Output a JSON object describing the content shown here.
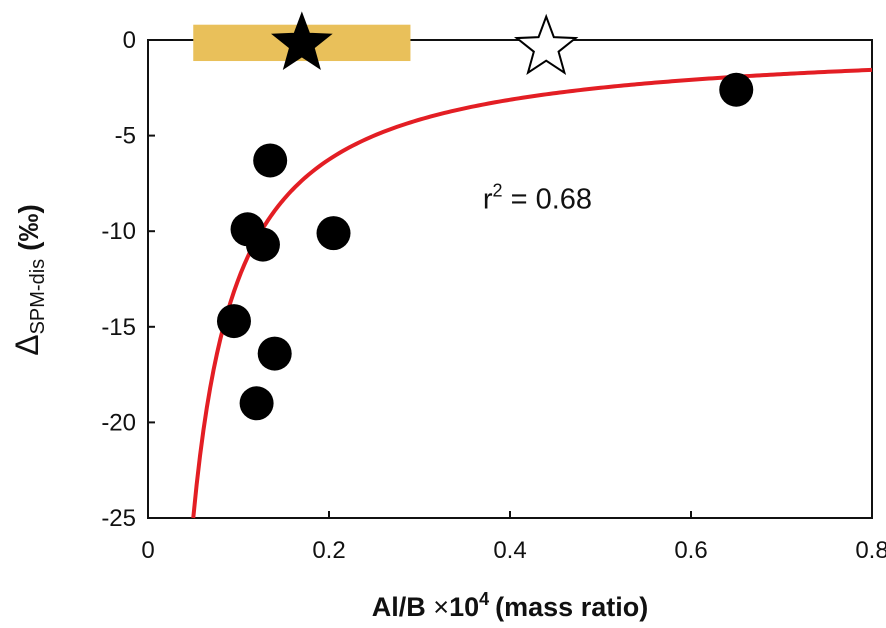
{
  "chart_data": {
    "type": "scatter",
    "xlabel": "Al/B × 10⁴ (mass ratio)",
    "xlabel_main": "Al/B",
    "xlabel_times": "×",
    "xlabel_ten": "10",
    "xlabel_exp": "4",
    "xlabel_unit": "(mass ratio)",
    "ylabel": "ΔSPM-dis (‰)",
    "ylabel_delta": "Δ",
    "ylabel_sub": "SPM-dis",
    "ylabel_unit": "(‰)",
    "xlim": [
      0,
      0.8
    ],
    "ylim": [
      -25,
      0
    ],
    "xticks": [
      "0",
      "0.2",
      "0.4",
      "0.6",
      "0.8"
    ],
    "xtick_values": [
      0,
      0.2,
      0.4,
      0.6,
      0.8
    ],
    "yticks": [
      "0",
      "-5",
      "-10",
      "-15",
      "-20",
      "-25"
    ],
    "ytick_values": [
      0,
      -5,
      -10,
      -15,
      -20,
      -25
    ],
    "grid": false,
    "legend": "none",
    "points": [
      {
        "x": 0.135,
        "y": -6.3
      },
      {
        "x": 0.11,
        "y": -9.9
      },
      {
        "x": 0.127,
        "y": -10.7
      },
      {
        "x": 0.205,
        "y": -10.1
      },
      {
        "x": 0.095,
        "y": -14.7
      },
      {
        "x": 0.14,
        "y": -16.4
      },
      {
        "x": 0.12,
        "y": -19.0
      },
      {
        "x": 0.65,
        "y": -2.6
      }
    ],
    "fit": {
      "type": "reciprocal",
      "a": -1.25,
      "b": 0.0,
      "x_start": 0.05,
      "x_end": 0.8
    },
    "annotation": {
      "text_r": "r",
      "text_sup": "2",
      "text_rest": " = 0.68",
      "x": 0.37,
      "y": -8.8
    },
    "range_bar": {
      "x0": 0.05,
      "x1": 0.29,
      "y_top": 0.8,
      "y_bottom": -1.1
    },
    "stars": [
      {
        "x": 0.17,
        "y": -0.2,
        "style": "filled"
      },
      {
        "x": 0.44,
        "y": -0.4,
        "style": "open"
      }
    ],
    "colors": {
      "fit_line": "#e31e24",
      "points": "#000000",
      "range_bar": "#e9c05a",
      "axis": "#111111"
    }
  }
}
